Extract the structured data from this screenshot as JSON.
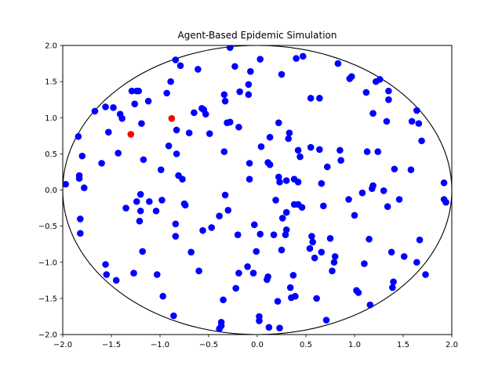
{
  "chart_data": {
    "type": "scatter",
    "title": "Agent-Based Epidemic Simulation",
    "xlabel": "",
    "ylabel": "",
    "xlim": [
      -2.0,
      2.0
    ],
    "ylim": [
      -2.0,
      2.0
    ],
    "x_ticks": [
      "−2.0",
      "−1.5",
      "−1.0",
      "−0.5",
      "0.0",
      "0.5",
      "1.0",
      "1.5",
      "2.0"
    ],
    "y_ticks": [
      "−2.0",
      "−1.5",
      "−1.0",
      "−0.5",
      "0.0",
      "0.5",
      "1.0",
      "1.5",
      "2.0"
    ],
    "grid": false,
    "boundary": {
      "shape": "circle",
      "center": [
        0,
        0
      ],
      "radius": 2.0,
      "color": "#000000"
    },
    "series": [
      {
        "color": "#0000ff",
        "points": [
          [
            -1.97,
            0.08
          ],
          [
            -1.84,
            0.74
          ],
          [
            -1.83,
            0.2
          ],
          [
            -1.83,
            0.16
          ],
          [
            -1.82,
            -0.4
          ],
          [
            -1.82,
            -0.6
          ],
          [
            -1.8,
            0.47
          ],
          [
            -1.78,
            0.03
          ],
          [
            -1.67,
            1.09
          ],
          [
            -1.6,
            0.37
          ],
          [
            -1.56,
            1.15
          ],
          [
            -1.56,
            -1.03
          ],
          [
            -1.55,
            -1.17
          ],
          [
            -1.53,
            0.8
          ],
          [
            -1.48,
            1.14
          ],
          [
            -1.45,
            -1.25
          ],
          [
            -1.43,
            0.51
          ],
          [
            -1.41,
            1.05
          ],
          [
            -1.39,
            0.99
          ],
          [
            -1.35,
            -0.25
          ],
          [
            -1.29,
            1.37
          ],
          [
            -1.27,
            -1.15
          ],
          [
            -1.26,
            1.19
          ],
          [
            -1.24,
            -0.16
          ],
          [
            -1.24,
            1.37
          ],
          [
            -1.22,
            1.37
          ],
          [
            -1.21,
            -0.43
          ],
          [
            -1.2,
            -0.06
          ],
          [
            -1.2,
            -0.29
          ],
          [
            -1.19,
            0.92
          ],
          [
            -1.18,
            -0.85
          ],
          [
            -1.17,
            0.42
          ],
          [
            -1.12,
            1.23
          ],
          [
            -1.11,
            -0.16
          ],
          [
            -1.04,
            -0.29
          ],
          [
            -1.03,
            -1.17
          ],
          [
            -0.99,
            0.28
          ],
          [
            -0.98,
            -0.14
          ],
          [
            -0.97,
            -1.47
          ],
          [
            -0.93,
            1.34
          ],
          [
            -0.91,
            0.61
          ],
          [
            -0.89,
            1.5
          ],
          [
            -0.86,
            -1.74
          ],
          [
            -0.84,
            1.8
          ],
          [
            -0.84,
            -0.47
          ],
          [
            -0.84,
            -0.64
          ],
          [
            -0.83,
            0.5
          ],
          [
            -0.83,
            0.83
          ],
          [
            -0.81,
            0.2
          ],
          [
            -0.79,
            1.72
          ],
          [
            -0.77,
            0.15
          ],
          [
            -0.75,
            -0.19
          ],
          [
            -0.74,
            -0.21
          ],
          [
            -0.7,
            0.79
          ],
          [
            -0.68,
            -0.86
          ],
          [
            -0.65,
            1.07
          ],
          [
            -0.61,
            1.67
          ],
          [
            -0.6,
            -1.12
          ],
          [
            -0.57,
            1.13
          ],
          [
            -0.56,
            -0.56
          ],
          [
            -0.55,
            1.11
          ],
          [
            -0.53,
            1.05
          ],
          [
            -0.49,
            0.78
          ],
          [
            -0.47,
            -0.52
          ],
          [
            -0.39,
            -1.92
          ],
          [
            -0.39,
            -0.36
          ],
          [
            -0.37,
            -1.83
          ],
          [
            -0.37,
            -1.88
          ],
          [
            -0.35,
            -1.52
          ],
          [
            -0.34,
            0.53
          ],
          [
            -0.34,
            1.32
          ],
          [
            -0.33,
            1.23
          ],
          [
            -0.33,
            -0.07
          ],
          [
            -0.31,
            0.93
          ],
          [
            -0.3,
            -0.28
          ],
          [
            -0.28,
            1.97
          ],
          [
            -0.28,
            0.94
          ],
          [
            -0.23,
            1.71
          ],
          [
            -0.22,
            -1.36
          ],
          [
            -0.2,
            -0.62
          ],
          [
            -0.19,
            -1.15
          ],
          [
            -0.19,
            0.87
          ],
          [
            -0.18,
            1.36
          ],
          [
            -0.1,
            -1.06
          ],
          [
            -0.09,
            1.46
          ],
          [
            -0.09,
            1.32
          ],
          [
            -0.08,
            0.37
          ],
          [
            -0.08,
            0.15
          ],
          [
            -0.07,
            1.64
          ],
          [
            -0.04,
            -1.15
          ],
          [
            -0.03,
            -0.48
          ],
          [
            -0.01,
            -0.85
          ],
          [
            0.02,
            -1.75
          ],
          [
            0.02,
            -1.81
          ],
          [
            0.03,
            1.81
          ],
          [
            0.04,
            0.6
          ],
          [
            0.03,
            -0.61
          ],
          [
            0.1,
            -1.24
          ],
          [
            0.11,
            -1.2
          ],
          [
            0.11,
            0.38
          ],
          [
            0.12,
            -1.9
          ],
          [
            0.13,
            0.73
          ],
          [
            0.13,
            0.35
          ],
          [
            0.17,
            -0.62
          ],
          [
            0.19,
            -0.14
          ],
          [
            0.21,
            -1.54
          ],
          [
            0.22,
            0.18
          ],
          [
            0.22,
            0.93
          ],
          [
            0.23,
            0.11
          ],
          [
            0.23,
            -1.91
          ],
          [
            0.25,
            1.6
          ],
          [
            0.25,
            -0.83
          ],
          [
            0.26,
            -0.39
          ],
          [
            0.29,
            -0.62
          ],
          [
            0.3,
            -0.31
          ],
          [
            0.3,
            0.13
          ],
          [
            0.3,
            -0.55
          ],
          [
            0.32,
            0.71
          ],
          [
            0.33,
            0.79
          ],
          [
            0.34,
            -1.35
          ],
          [
            0.35,
            -1.49
          ],
          [
            0.37,
            -1.18
          ],
          [
            0.38,
            0.15
          ],
          [
            0.38,
            -0.2
          ],
          [
            0.39,
            -1.47
          ],
          [
            0.4,
            1.82
          ],
          [
            0.42,
            -0.2
          ],
          [
            0.42,
            0.55
          ],
          [
            0.42,
            0.11
          ],
          [
            0.44,
            0.46
          ],
          [
            0.46,
            -0.24
          ],
          [
            0.47,
            1.85
          ],
          [
            0.54,
            -0.81
          ],
          [
            0.55,
            0.59
          ],
          [
            0.55,
            1.27
          ],
          [
            0.56,
            -0.64
          ],
          [
            0.57,
            -0.72
          ],
          [
            0.59,
            -0.94
          ],
          [
            0.61,
            -1.5
          ],
          [
            0.64,
            1.27
          ],
          [
            0.64,
            0.56
          ],
          [
            0.66,
            0.09
          ],
          [
            0.66,
            -0.86
          ],
          [
            0.68,
            -0.22
          ],
          [
            0.71,
            -1.8
          ],
          [
            0.72,
            0.32
          ],
          [
            0.75,
            -0.67
          ],
          [
            0.77,
            -1.12
          ],
          [
            0.79,
            -1.0
          ],
          [
            0.8,
            -0.92
          ],
          [
            0.83,
            1.75
          ],
          [
            0.85,
            0.55
          ],
          [
            0.86,
            0.41
          ],
          [
            0.95,
            1.54
          ],
          [
            0.97,
            1.57
          ],
          [
            0.94,
            -0.13
          ],
          [
            1.0,
            -0.35
          ],
          [
            1.02,
            -1.39
          ],
          [
            1.04,
            -1.42
          ],
          [
            1.08,
            -0.04
          ],
          [
            1.1,
            -1.02
          ],
          [
            1.12,
            1.35
          ],
          [
            1.13,
            0.53
          ],
          [
            1.15,
            -0.68
          ],
          [
            1.16,
            -1.59
          ],
          [
            1.18,
            0.02
          ],
          [
            1.19,
            1.06
          ],
          [
            1.19,
            0.06
          ],
          [
            1.22,
            1.5
          ],
          [
            1.24,
            0.53
          ],
          [
            1.26,
            1.53
          ],
          [
            1.3,
            -0.01
          ],
          [
            1.33,
            0.95
          ],
          [
            1.34,
            -0.23
          ],
          [
            1.35,
            1.37
          ],
          [
            1.35,
            1.25
          ],
          [
            1.38,
            -0.86
          ],
          [
            1.39,
            -1.35
          ],
          [
            1.4,
            -1.27
          ],
          [
            1.41,
            0.29
          ],
          [
            1.46,
            -0.13
          ],
          [
            1.51,
            -0.92
          ],
          [
            1.58,
            0.28
          ],
          [
            1.59,
            0.95
          ],
          [
            1.64,
            1.1
          ],
          [
            1.64,
            -1.0
          ],
          [
            1.66,
            0.92
          ],
          [
            1.67,
            -0.69
          ],
          [
            1.69,
            0.68
          ],
          [
            1.73,
            -1.17
          ],
          [
            1.92,
            0.1
          ],
          [
            1.92,
            -0.13
          ],
          [
            1.94,
            -0.17
          ]
        ]
      },
      {
        "color": "#ff0000",
        "points": [
          [
            -1.3,
            0.77
          ],
          [
            -0.88,
            0.99
          ]
        ]
      }
    ]
  }
}
